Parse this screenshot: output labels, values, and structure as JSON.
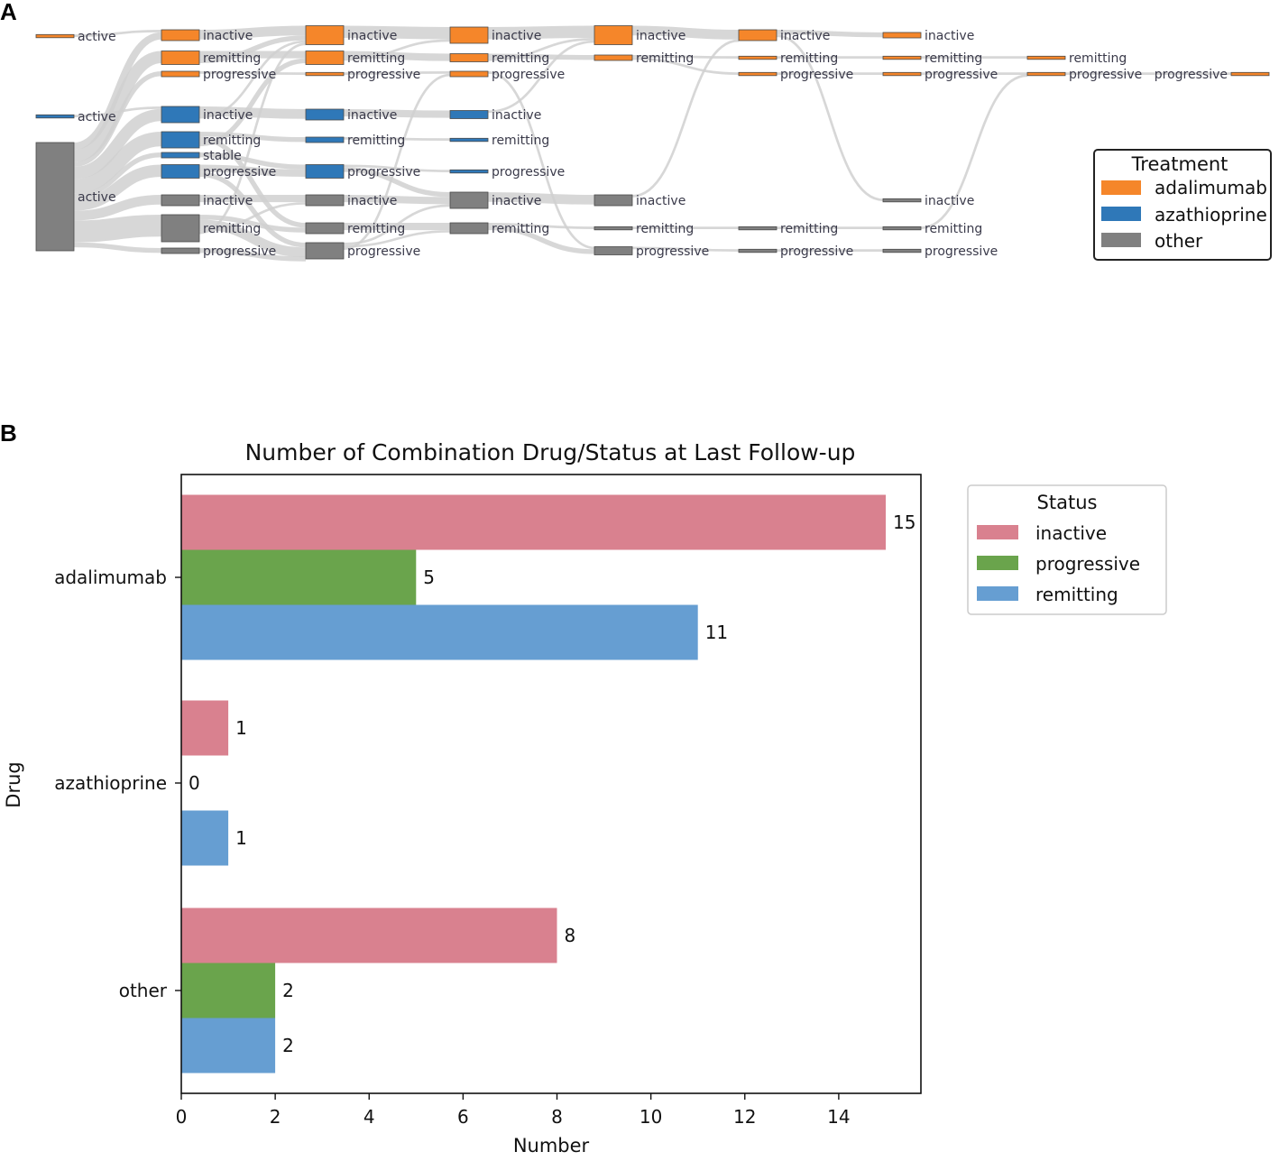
{
  "panel_a": {
    "letter": "A",
    "legend": {
      "title": "Treatment",
      "items": [
        {
          "label": "adalimumab",
          "color": "#f5862a"
        },
        {
          "label": "azathioprine",
          "color": "#2f78b8"
        },
        {
          "label": "other",
          "color": "#808080"
        }
      ]
    },
    "link_color": "#d0d0d0",
    "node_border": "#4a4a4a",
    "columns": [
      {
        "nodes": [
          {
            "id": "c0-ada-active",
            "label": "active",
            "treatment": "adalimumab",
            "weight": 1
          },
          {
            "id": "c0-aza-active",
            "label": "active",
            "treatment": "azathioprine",
            "weight": 1
          },
          {
            "id": "c0-oth-active",
            "label": "active",
            "treatment": "other",
            "weight": 40
          }
        ]
      },
      {
        "nodes": [
          {
            "id": "c1-ada-inactive",
            "label": "inactive",
            "treatment": "adalimumab",
            "weight": 4
          },
          {
            "id": "c1-ada-remitting",
            "label": "remitting",
            "treatment": "adalimumab",
            "weight": 5
          },
          {
            "id": "c1-ada-progressive",
            "label": "progressive",
            "treatment": "adalimumab",
            "weight": 2
          },
          {
            "id": "c1-aza-inactive",
            "label": "inactive",
            "treatment": "azathioprine",
            "weight": 6
          },
          {
            "id": "c1-aza-remitting",
            "label": "remitting",
            "treatment": "azathioprine",
            "weight": 6
          },
          {
            "id": "c1-aza-stable",
            "label": "stable",
            "treatment": "azathioprine",
            "weight": 2
          },
          {
            "id": "c1-aza-progressive",
            "label": "progressive",
            "treatment": "azathioprine",
            "weight": 5
          },
          {
            "id": "c1-oth-inactive",
            "label": "inactive",
            "treatment": "other",
            "weight": 4
          },
          {
            "id": "c1-oth-remitting",
            "label": "remitting",
            "treatment": "other",
            "weight": 10
          },
          {
            "id": "c1-oth-progressive",
            "label": "progressive",
            "treatment": "other",
            "weight": 2
          }
        ]
      },
      {
        "nodes": [
          {
            "id": "c2-ada-inactive",
            "label": "inactive",
            "treatment": "adalimumab",
            "weight": 7
          },
          {
            "id": "c2-ada-remitting",
            "label": "remitting",
            "treatment": "adalimumab",
            "weight": 5
          },
          {
            "id": "c2-ada-progressive",
            "label": "progressive",
            "treatment": "adalimumab",
            "weight": 1
          },
          {
            "id": "c2-aza-inactive",
            "label": "inactive",
            "treatment": "azathioprine",
            "weight": 4
          },
          {
            "id": "c2-aza-remitting",
            "label": "remitting",
            "treatment": "azathioprine",
            "weight": 2
          },
          {
            "id": "c2-aza-progressive",
            "label": "progressive",
            "treatment": "azathioprine",
            "weight": 5
          },
          {
            "id": "c2-oth-inactive",
            "label": "inactive",
            "treatment": "other",
            "weight": 4
          },
          {
            "id": "c2-oth-remitting",
            "label": "remitting",
            "treatment": "other",
            "weight": 4
          },
          {
            "id": "c2-oth-progressive",
            "label": "progressive",
            "treatment": "other",
            "weight": 6
          }
        ]
      },
      {
        "nodes": [
          {
            "id": "c3-ada-inactive",
            "label": "inactive",
            "treatment": "adalimumab",
            "weight": 6
          },
          {
            "id": "c3-ada-remitting",
            "label": "remitting",
            "treatment": "adalimumab",
            "weight": 3
          },
          {
            "id": "c3-ada-progressive",
            "label": "progressive",
            "treatment": "adalimumab",
            "weight": 2
          },
          {
            "id": "c3-aza-inactive",
            "label": "inactive",
            "treatment": "azathioprine",
            "weight": 3
          },
          {
            "id": "c3-aza-remitting",
            "label": "remitting",
            "treatment": "azathioprine",
            "weight": 1
          },
          {
            "id": "c3-aza-progressive",
            "label": "progressive",
            "treatment": "azathioprine",
            "weight": 1
          },
          {
            "id": "c3-oth-inactive",
            "label": "inactive",
            "treatment": "other",
            "weight": 6
          },
          {
            "id": "c3-oth-remitting",
            "label": "remitting",
            "treatment": "other",
            "weight": 4
          }
        ]
      },
      {
        "nodes": [
          {
            "id": "c4-ada-inactive",
            "label": "inactive",
            "treatment": "adalimumab",
            "weight": 7
          },
          {
            "id": "c4-ada-remitting",
            "label": "remitting",
            "treatment": "adalimumab",
            "weight": 2
          },
          {
            "id": "c4-oth-inactive",
            "label": "inactive",
            "treatment": "other",
            "weight": 4
          },
          {
            "id": "c4-oth-remitting",
            "label": "remitting",
            "treatment": "other",
            "weight": 1
          },
          {
            "id": "c4-oth-progressive",
            "label": "progressive",
            "treatment": "other",
            "weight": 3
          }
        ]
      },
      {
        "nodes": [
          {
            "id": "c5-ada-inactive",
            "label": "inactive",
            "treatment": "adalimumab",
            "weight": 4
          },
          {
            "id": "c5-ada-remitting",
            "label": "remitting",
            "treatment": "adalimumab",
            "weight": 1
          },
          {
            "id": "c5-ada-progressive",
            "label": "progressive",
            "treatment": "adalimumab",
            "weight": 1
          },
          {
            "id": "c5-oth-remitting",
            "label": "remitting",
            "treatment": "other",
            "weight": 1
          },
          {
            "id": "c5-oth-progressive",
            "label": "progressive",
            "treatment": "other",
            "weight": 1
          }
        ]
      },
      {
        "nodes": [
          {
            "id": "c6-ada-inactive",
            "label": "inactive",
            "treatment": "adalimumab",
            "weight": 2
          },
          {
            "id": "c6-ada-remitting",
            "label": "remitting",
            "treatment": "adalimumab",
            "weight": 1
          },
          {
            "id": "c6-ada-progressive",
            "label": "progressive",
            "treatment": "adalimumab",
            "weight": 1
          },
          {
            "id": "c6-oth-inactive",
            "label": "inactive",
            "treatment": "other",
            "weight": 1
          },
          {
            "id": "c6-oth-remitting",
            "label": "remitting",
            "treatment": "other",
            "weight": 1
          },
          {
            "id": "c6-oth-progressive",
            "label": "progressive",
            "treatment": "other",
            "weight": 1
          }
        ]
      },
      {
        "nodes": [
          {
            "id": "c7-ada-remitting",
            "label": "remitting",
            "treatment": "adalimumab",
            "weight": 1
          },
          {
            "id": "c7-ada-progressive",
            "label": "progressive",
            "treatment": "adalimumab",
            "weight": 1
          }
        ]
      },
      {
        "nodes": [
          {
            "id": "c8-ada-progressive",
            "label": "progressive",
            "treatment": "adalimumab",
            "weight": 1
          }
        ]
      }
    ],
    "links": [
      [
        "c0-ada-active",
        "c1-ada-inactive",
        1
      ],
      [
        "c0-aza-active",
        "c1-aza-inactive",
        1
      ],
      [
        "c0-oth-active",
        "c1-ada-inactive",
        3
      ],
      [
        "c0-oth-active",
        "c1-ada-remitting",
        5
      ],
      [
        "c0-oth-active",
        "c1-ada-progressive",
        2
      ],
      [
        "c0-oth-active",
        "c1-aza-inactive",
        5
      ],
      [
        "c0-oth-active",
        "c1-aza-remitting",
        6
      ],
      [
        "c0-oth-active",
        "c1-aza-stable",
        2
      ],
      [
        "c0-oth-active",
        "c1-aza-progressive",
        5
      ],
      [
        "c0-oth-active",
        "c1-oth-inactive",
        4
      ],
      [
        "c0-oth-active",
        "c1-oth-remitting",
        9
      ],
      [
        "c0-oth-active",
        "c1-oth-progressive",
        2
      ],
      [
        "c1-ada-inactive",
        "c2-ada-inactive",
        4
      ],
      [
        "c1-ada-remitting",
        "c2-ada-remitting",
        3
      ],
      [
        "c1-ada-remitting",
        "c2-ada-inactive",
        2
      ],
      [
        "c1-ada-progressive",
        "c2-ada-progressive",
        1
      ],
      [
        "c1-aza-inactive",
        "c2-aza-inactive",
        4
      ],
      [
        "c1-aza-inactive",
        "c2-ada-inactive",
        1
      ],
      [
        "c1-aza-remitting",
        "c2-aza-remitting",
        2
      ],
      [
        "c1-aza-remitting",
        "c2-oth-remitting",
        2
      ],
      [
        "c1-aza-remitting",
        "c2-ada-remitting",
        2
      ],
      [
        "c1-aza-stable",
        "c2-aza-progressive",
        2
      ],
      [
        "c1-aza-progressive",
        "c2-aza-progressive",
        3
      ],
      [
        "c1-aza-progressive",
        "c2-oth-progressive",
        2
      ],
      [
        "c1-oth-inactive",
        "c2-oth-inactive",
        3
      ],
      [
        "c1-oth-remitting",
        "c2-oth-remitting",
        2
      ],
      [
        "c1-oth-remitting",
        "c2-oth-progressive",
        4
      ],
      [
        "c1-oth-remitting",
        "c2-oth-inactive",
        1
      ],
      [
        "c1-oth-remitting",
        "c2-ada-inactive",
        1
      ],
      [
        "c1-oth-progressive",
        "c2-oth-progressive",
        2
      ],
      [
        "c2-ada-inactive",
        "c3-ada-inactive",
        5
      ],
      [
        "c2-ada-remitting",
        "c3-ada-remitting",
        3
      ],
      [
        "c2-ada-remitting",
        "c3-ada-inactive",
        1
      ],
      [
        "c2-ada-progressive",
        "c3-ada-progressive",
        1
      ],
      [
        "c2-aza-inactive",
        "c3-aza-inactive",
        3
      ],
      [
        "c2-aza-remitting",
        "c3-aza-remitting",
        1
      ],
      [
        "c2-aza-progressive",
        "c3-aza-progressive",
        1
      ],
      [
        "c2-aza-progressive",
        "c3-oth-inactive",
        2
      ],
      [
        "c2-oth-inactive",
        "c3-oth-inactive",
        3
      ],
      [
        "c2-oth-remitting",
        "c3-oth-remitting",
        3
      ],
      [
        "c2-oth-progressive",
        "c3-oth-inactive",
        1
      ],
      [
        "c2-oth-progressive",
        "c3-oth-remitting",
        1
      ],
      [
        "c2-oth-progressive",
        "c3-ada-progressive",
        1
      ],
      [
        "c3-ada-inactive",
        "c4-ada-inactive",
        5
      ],
      [
        "c3-ada-remitting",
        "c4-ada-remitting",
        2
      ],
      [
        "c3-ada-remitting",
        "c4-ada-inactive",
        1
      ],
      [
        "c3-ada-progressive",
        "c4-oth-progressive",
        1
      ],
      [
        "c3-aza-inactive",
        "c4-ada-inactive",
        1
      ],
      [
        "c3-oth-inactive",
        "c4-oth-inactive",
        4
      ],
      [
        "c3-oth-remitting",
        "c4-oth-remitting",
        1
      ],
      [
        "c3-oth-remitting",
        "c4-oth-progressive",
        2
      ],
      [
        "c4-ada-inactive",
        "c5-ada-inactive",
        4
      ],
      [
        "c4-ada-remitting",
        "c5-ada-remitting",
        1
      ],
      [
        "c4-ada-remitting",
        "c5-ada-progressive",
        1
      ],
      [
        "c4-oth-inactive",
        "c5-ada-inactive",
        1
      ],
      [
        "c4-oth-remitting",
        "c5-oth-remitting",
        1
      ],
      [
        "c4-oth-progressive",
        "c5-oth-progressive",
        1
      ],
      [
        "c5-ada-inactive",
        "c6-ada-inactive",
        2
      ],
      [
        "c5-ada-remitting",
        "c6-ada-remitting",
        1
      ],
      [
        "c5-ada-progressive",
        "c6-ada-progressive",
        1
      ],
      [
        "c5-ada-inactive",
        "c6-oth-inactive",
        1
      ],
      [
        "c5-oth-remitting",
        "c6-oth-remitting",
        1
      ],
      [
        "c5-oth-progressive",
        "c6-oth-progressive",
        1
      ],
      [
        "c6-ada-remitting",
        "c7-ada-remitting",
        1
      ],
      [
        "c6-ada-progressive",
        "c7-ada-progressive",
        1
      ],
      [
        "c6-oth-remitting",
        "c7-ada-progressive",
        1
      ],
      [
        "c7-ada-progressive",
        "c8-ada-progressive",
        1
      ]
    ]
  },
  "panel_b": {
    "letter": "B"
  },
  "chart_data": [
    {
      "type": "sankey",
      "panel": "A",
      "title": "",
      "legend_title": "Treatment",
      "legend_entries": [
        "adalimumab",
        "azathioprine",
        "other"
      ],
      "node_states": [
        "active",
        "inactive",
        "remitting",
        "stable",
        "progressive"
      ]
    },
    {
      "type": "bar",
      "orientation": "horizontal",
      "panel": "B",
      "title": "Number of Combination Drug/Status at Last Follow-up",
      "xlabel": "Number",
      "ylabel": "Drug",
      "categories": [
        "adalimumab",
        "azathioprine",
        "other"
      ],
      "series": [
        {
          "name": "inactive",
          "color": "#d9818f",
          "values": [
            15,
            1,
            8
          ]
        },
        {
          "name": "progressive",
          "color": "#6aa44c",
          "values": [
            5,
            0,
            2
          ]
        },
        {
          "name": "remitting",
          "color": "#669ed2",
          "values": [
            11,
            1,
            2
          ]
        }
      ],
      "xlim": [
        0,
        15.75
      ],
      "xticks": [
        0,
        2,
        4,
        6,
        8,
        10,
        12,
        14
      ],
      "legend_title": "Status",
      "legend_position": "outside-upper-right",
      "grid": false
    }
  ]
}
